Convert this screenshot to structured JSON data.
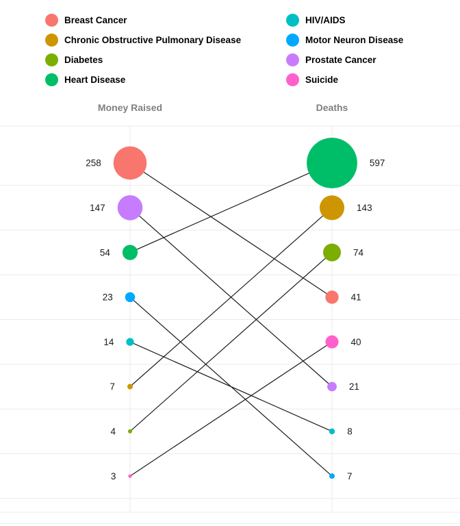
{
  "legend": {
    "columns": [
      [
        {
          "label": "Breast Cancer",
          "color": "#F8766D"
        },
        {
          "label": "Chronic Obstructive Pulmonary Disease",
          "color": "#CD9600"
        },
        {
          "label": "Diabetes",
          "color": "#7CAE00"
        },
        {
          "label": "Heart Disease",
          "color": "#00BE67"
        }
      ],
      [
        {
          "label": "HIV/AIDS",
          "color": "#00BFC4"
        },
        {
          "label": "Motor Neuron Disease",
          "color": "#00A9FF"
        },
        {
          "label": "Prostate Cancer",
          "color": "#C77CFF"
        },
        {
          "label": "Suicide",
          "color": "#FF61CC"
        }
      ]
    ]
  },
  "chart_data": {
    "type": "scatter",
    "subtype": "slope-bubble-chart",
    "columns": [
      "Money Raised",
      "Deaths"
    ],
    "grid": true,
    "legend_position": "top",
    "bubble_size_encodes": "value",
    "series": [
      {
        "name": "Breast Cancer",
        "color": "#F8766D",
        "money_raised": 258,
        "deaths": 41,
        "money_rank": 1,
        "deaths_rank": 4
      },
      {
        "name": "Chronic Obstructive Pulmonary Disease",
        "color": "#CD9600",
        "money_raised": 7,
        "deaths": 143,
        "money_rank": 6,
        "deaths_rank": 2
      },
      {
        "name": "Diabetes",
        "color": "#7CAE00",
        "money_raised": 4,
        "deaths": 74,
        "money_rank": 7,
        "deaths_rank": 3
      },
      {
        "name": "Heart Disease",
        "color": "#00BE67",
        "money_raised": 54,
        "deaths": 597,
        "money_rank": 3,
        "deaths_rank": 1
      },
      {
        "name": "HIV/AIDS",
        "color": "#00BFC4",
        "money_raised": 14,
        "deaths": 8,
        "money_rank": 5,
        "deaths_rank": 7
      },
      {
        "name": "Motor Neuron Disease",
        "color": "#00A9FF",
        "money_raised": 23,
        "deaths": 7,
        "money_rank": 4,
        "deaths_rank": 8
      },
      {
        "name": "Prostate Cancer",
        "color": "#C77CFF",
        "money_raised": 147,
        "deaths": 21,
        "money_rank": 2,
        "deaths_rank": 6
      },
      {
        "name": "Suicide",
        "color": "#FF61CC",
        "money_raised": 3,
        "deaths": 40,
        "money_rank": 8,
        "deaths_rank": 5
      }
    ]
  }
}
